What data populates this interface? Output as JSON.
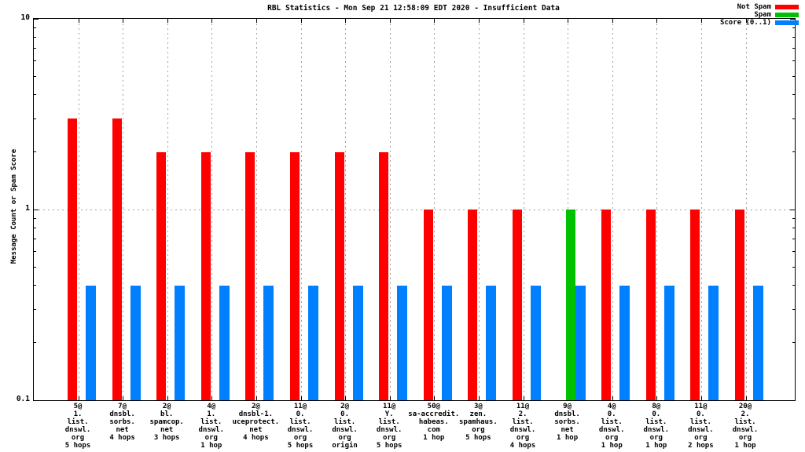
{
  "title": "RBL Statistics - Mon Sep 21 12:58:09 EDT 2020 - Insufficient Data",
  "chart_data": {
    "type": "bar",
    "title": "RBL Statistics - Mon Sep 21 12:58:09 EDT 2020 - Insufficient Data",
    "ylabel": "Message Count or Spam Score",
    "xlabel": "",
    "y_scale": "log",
    "ylim": [
      0.1,
      10
    ],
    "y_major_ticks": [
      10,
      1,
      0.1
    ],
    "y_major_tick_labels": [
      "10",
      "1",
      "0.1"
    ],
    "grid": {
      "vertical_at_each_category": true,
      "horizontal_at": [
        1
      ]
    },
    "legend_position": "top-right",
    "categories": [
      [
        "5@",
        "1.",
        "list.",
        "dnswl.",
        "org",
        "5 hops"
      ],
      [
        "7@",
        "dnsbl.",
        "sorbs.",
        "net",
        "4 hops"
      ],
      [
        "2@",
        "bl.",
        "spamcop.",
        "net",
        "3 hops"
      ],
      [
        "4@",
        "1.",
        "list.",
        "dnswl.",
        "org",
        "1 hop"
      ],
      [
        "2@",
        "dnsbl-1.",
        "uceprotect.",
        "net",
        "4 hops"
      ],
      [
        "11@",
        "0.",
        "list.",
        "dnswl.",
        "org",
        "5 hops"
      ],
      [
        "2@",
        "0.",
        "list.",
        "dnswl.",
        "org",
        "origin"
      ],
      [
        "11@",
        "Y.",
        "list.",
        "dnswl.",
        "org",
        "5 hops"
      ],
      [
        "50@",
        "sa-accredit.",
        "habeas.",
        "com",
        "1 hop"
      ],
      [
        "3@",
        "zen.",
        "spamhaus.",
        "org",
        "5 hops"
      ],
      [
        "11@",
        "2.",
        "list.",
        "dnswl.",
        "org",
        "4 hops"
      ],
      [
        "9@",
        "dnsbl.",
        "sorbs.",
        "net",
        "1 hop"
      ],
      [
        "4@",
        "0.",
        "list.",
        "dnswl.",
        "org",
        "1 hop"
      ],
      [
        "8@",
        "0.",
        "list.",
        "dnswl.",
        "org",
        "1 hop"
      ],
      [
        "11@",
        "0.",
        "list.",
        "dnswl.",
        "org",
        "2 hops"
      ],
      [
        "20@",
        "2.",
        "list.",
        "dnswl.",
        "org",
        "1 hop"
      ]
    ],
    "series": [
      {
        "name": "Not Spam",
        "color": "#ff0000",
        "values": [
          3,
          3,
          2,
          2,
          2,
          2,
          2,
          2,
          1,
          1,
          1,
          null,
          1,
          1,
          1,
          1
        ]
      },
      {
        "name": "Spam",
        "color": "#00c000",
        "values": [
          null,
          null,
          null,
          null,
          null,
          null,
          null,
          null,
          null,
          null,
          null,
          1,
          null,
          null,
          null,
          null
        ]
      },
      {
        "name": "Score (0..1)",
        "color": "#0080ff",
        "values": [
          0.4,
          0.4,
          0.4,
          0.4,
          0.4,
          0.4,
          0.4,
          0.4,
          0.4,
          0.4,
          0.4,
          0.4,
          0.4,
          0.4,
          0.4,
          0.4
        ]
      }
    ]
  }
}
